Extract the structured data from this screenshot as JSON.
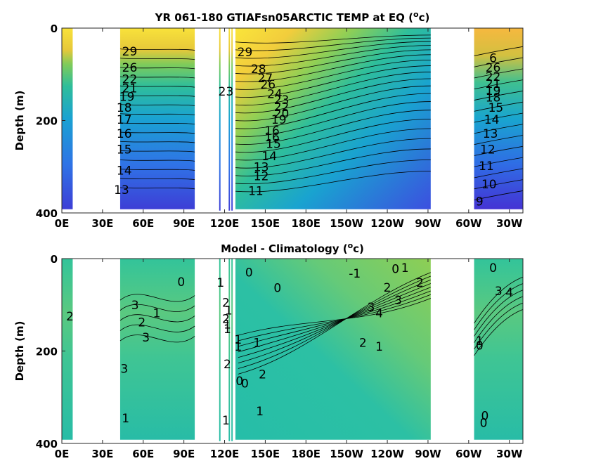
{
  "chart_data": [
    {
      "type": "heatmap",
      "title": "YR 061-180 GTIAFsn05ARCTIC TEMP at EQ (",
      "title_sup": "o",
      "title_end": "c)",
      "ylabel": "Depth (m)",
      "xlim": [
        0,
        340
      ],
      "ylim": [
        400,
        0
      ],
      "xticks": [
        "0E",
        "30E",
        "60E",
        "90E",
        "120E",
        "150E",
        "180E",
        "150W",
        "120W",
        "90W",
        "60W",
        "30W"
      ],
      "xtick_values": [
        0,
        30,
        60,
        90,
        120,
        150,
        180,
        210,
        240,
        270,
        300,
        330
      ],
      "yticks": [
        "0",
        "200",
        "400"
      ],
      "ytick_values": [
        0,
        200,
        400
      ],
      "colormap": [
        "#3f2cd0",
        "#2f6fe6",
        "#1aa2d2",
        "#2ebd9a",
        "#8ccb4f",
        "#e9c23a",
        "#f9f21d"
      ],
      "data_lon_ranges": [
        [
          0,
          8
        ],
        [
          43,
          98
        ],
        [
          116,
          117
        ],
        [
          123,
          124
        ],
        [
          125,
          126
        ],
        [
          128,
          272
        ],
        [
          304,
          340
        ]
      ],
      "contour_labels": [
        {
          "text": "29",
          "lon": 50,
          "depth": 50
        },
        {
          "text": "26",
          "lon": 50,
          "depth": 85
        },
        {
          "text": "22",
          "lon": 50,
          "depth": 110
        },
        {
          "text": "21",
          "lon": 50,
          "depth": 130
        },
        {
          "text": "19",
          "lon": 48,
          "depth": 148
        },
        {
          "text": "18",
          "lon": 46,
          "depth": 172
        },
        {
          "text": "17",
          "lon": 46,
          "depth": 198
        },
        {
          "text": "16",
          "lon": 46,
          "depth": 228
        },
        {
          "text": "15",
          "lon": 46,
          "depth": 262
        },
        {
          "text": "14",
          "lon": 46,
          "depth": 308
        },
        {
          "text": "13",
          "lon": 44,
          "depth": 350
        },
        {
          "text": "29",
          "lon": 135,
          "depth": 52
        },
        {
          "text": "28",
          "lon": 145,
          "depth": 88
        },
        {
          "text": "27",
          "lon": 150,
          "depth": 108
        },
        {
          "text": "26",
          "lon": 152,
          "depth": 122
        },
        {
          "text": "24",
          "lon": 157,
          "depth": 142
        },
        {
          "text": "23",
          "lon": 121,
          "depth": 137
        },
        {
          "text": "23",
          "lon": 162,
          "depth": 155
        },
        {
          "text": "22",
          "lon": 162,
          "depth": 170
        },
        {
          "text": "20",
          "lon": 162,
          "depth": 185
        },
        {
          "text": "19",
          "lon": 160,
          "depth": 198
        },
        {
          "text": "16",
          "lon": 155,
          "depth": 222
        },
        {
          "text": "16",
          "lon": 155,
          "depth": 236
        },
        {
          "text": "15",
          "lon": 156,
          "depth": 250
        },
        {
          "text": "14",
          "lon": 153,
          "depth": 277
        },
        {
          "text": "13",
          "lon": 147,
          "depth": 300
        },
        {
          "text": "12",
          "lon": 147,
          "depth": 320
        },
        {
          "text": "11",
          "lon": 143,
          "depth": 352
        },
        {
          "text": "6",
          "lon": 318,
          "depth": 65
        },
        {
          "text": "26",
          "lon": 318,
          "depth": 85
        },
        {
          "text": "22",
          "lon": 318,
          "depth": 105
        },
        {
          "text": "21",
          "lon": 318,
          "depth": 120
        },
        {
          "text": "19",
          "lon": 318,
          "depth": 135
        },
        {
          "text": "18",
          "lon": 318,
          "depth": 150
        },
        {
          "text": "15",
          "lon": 320,
          "depth": 172
        },
        {
          "text": "14",
          "lon": 317,
          "depth": 198
        },
        {
          "text": "13",
          "lon": 316,
          "depth": 228
        },
        {
          "text": "12",
          "lon": 314,
          "depth": 262
        },
        {
          "text": "11",
          "lon": 313,
          "depth": 298
        },
        {
          "text": "10",
          "lon": 315,
          "depth": 338
        },
        {
          "text": "9",
          "lon": 308,
          "depth": 375
        }
      ]
    },
    {
      "type": "heatmap",
      "title": "Model - Climatology (",
      "title_sup": "o",
      "title_end": "c)",
      "ylabel": "Depth (m)",
      "xlim": [
        0,
        340
      ],
      "ylim": [
        400,
        0
      ],
      "xticks": [
        "0E",
        "30E",
        "60E",
        "90E",
        "120E",
        "150E",
        "180E",
        "150W",
        "120W",
        "90W",
        "60W",
        "30W"
      ],
      "xtick_values": [
        0,
        30,
        60,
        90,
        120,
        150,
        180,
        210,
        240,
        270,
        300,
        330
      ],
      "yticks": [
        "0",
        "200",
        "400"
      ],
      "ytick_values": [
        0,
        200,
        400
      ],
      "colormap": [
        "#2fb8a4",
        "#24c2ab",
        "#3bc49a",
        "#58c97f",
        "#7ccd5d",
        "#9ed14a"
      ],
      "data_lon_ranges": [
        [
          0,
          8
        ],
        [
          43,
          98
        ],
        [
          116,
          117
        ],
        [
          123,
          124
        ],
        [
          125,
          126
        ],
        [
          128,
          272
        ],
        [
          304,
          340
        ]
      ],
      "contour_labels": [
        {
          "text": "2",
          "lon": 6,
          "depth": 125
        },
        {
          "text": "3",
          "lon": 54,
          "depth": 100
        },
        {
          "text": "0",
          "lon": 88,
          "depth": 50
        },
        {
          "text": "1",
          "lon": 70,
          "depth": 118
        },
        {
          "text": "2",
          "lon": 59,
          "depth": 138
        },
        {
          "text": "3",
          "lon": 62,
          "depth": 170
        },
        {
          "text": "3",
          "lon": 46,
          "depth": 238
        },
        {
          "text": "1",
          "lon": 47,
          "depth": 345
        },
        {
          "text": "1",
          "lon": 117,
          "depth": 52
        },
        {
          "text": "2",
          "lon": 121,
          "depth": 95
        },
        {
          "text": "1",
          "lon": 123,
          "depth": 112
        },
        {
          "text": "2",
          "lon": 121,
          "depth": 130
        },
        {
          "text": "1",
          "lon": 122,
          "depth": 142
        },
        {
          "text": "1",
          "lon": 122,
          "depth": 152
        },
        {
          "text": "1",
          "lon": 130,
          "depth": 175
        },
        {
          "text": "1",
          "lon": 130,
          "depth": 190
        },
        {
          "text": "2",
          "lon": 122,
          "depth": 228
        },
        {
          "text": "0",
          "lon": 131,
          "depth": 265
        },
        {
          "text": "0",
          "lon": 135,
          "depth": 270
        },
        {
          "text": "1",
          "lon": 144,
          "depth": 182
        },
        {
          "text": "2",
          "lon": 148,
          "depth": 250
        },
        {
          "text": "1",
          "lon": 121,
          "depth": 350
        },
        {
          "text": "1",
          "lon": 146,
          "depth": 330
        },
        {
          "text": "0",
          "lon": 138,
          "depth": 30
        },
        {
          "text": "0",
          "lon": 159,
          "depth": 63
        },
        {
          "text": "-1",
          "lon": 216,
          "depth": 32
        },
        {
          "text": "0",
          "lon": 246,
          "depth": 22
        },
        {
          "text": "1",
          "lon": 253,
          "depth": 20
        },
        {
          "text": "2",
          "lon": 264,
          "depth": 52
        },
        {
          "text": "2",
          "lon": 240,
          "depth": 62
        },
        {
          "text": "3",
          "lon": 248,
          "depth": 90
        },
        {
          "text": "3",
          "lon": 228,
          "depth": 105
        },
        {
          "text": "4",
          "lon": 234,
          "depth": 118
        },
        {
          "text": "2",
          "lon": 222,
          "depth": 182
        },
        {
          "text": "1",
          "lon": 234,
          "depth": 190
        },
        {
          "text": "0",
          "lon": 318,
          "depth": 20
        },
        {
          "text": "3",
          "lon": 322,
          "depth": 70
        },
        {
          "text": "4",
          "lon": 330,
          "depth": 73
        },
        {
          "text": "0",
          "lon": 308,
          "depth": 188
        },
        {
          "text": "1",
          "lon": 308,
          "depth": 178
        },
        {
          "text": "0",
          "lon": 312,
          "depth": 340
        },
        {
          "text": "0",
          "lon": 311,
          "depth": 355
        }
      ]
    }
  ]
}
